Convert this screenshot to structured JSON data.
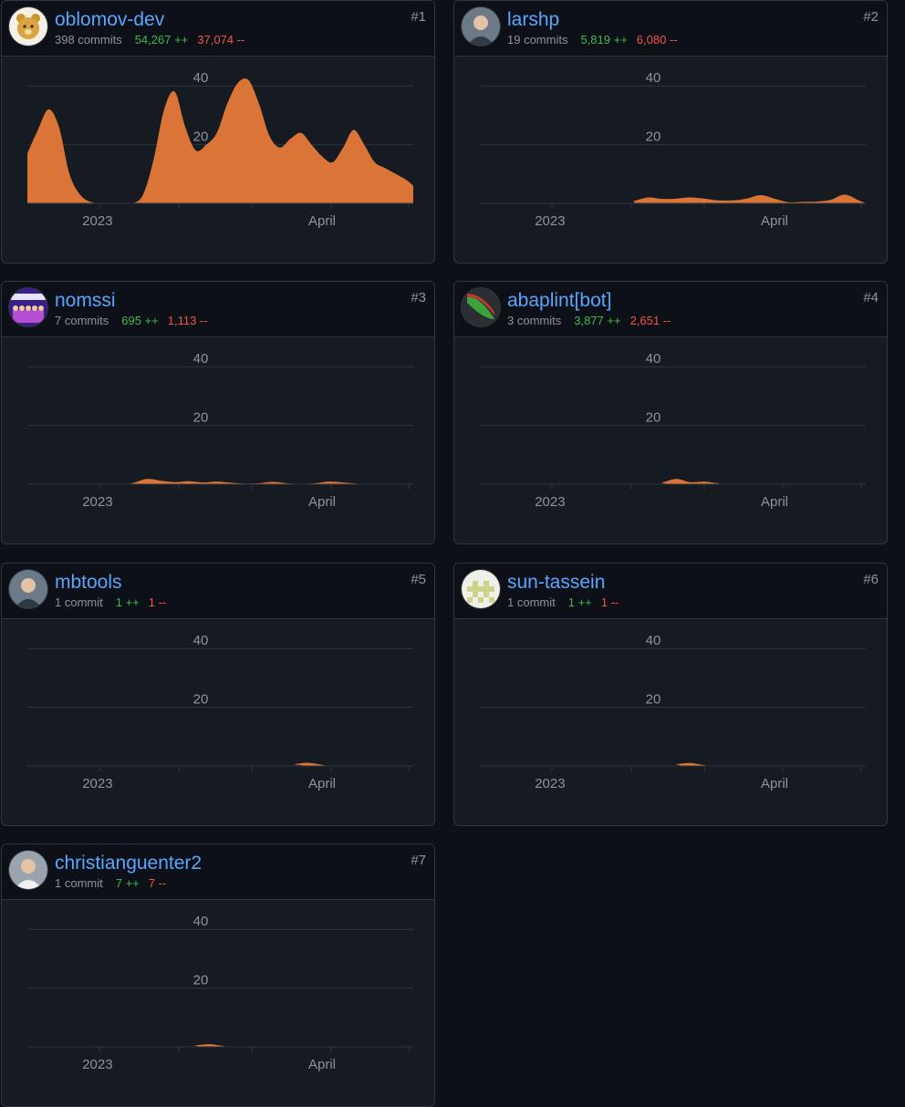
{
  "accent_color": "#db7537",
  "link_color": "#58a6ff",
  "additions_color": "#3fb950",
  "deletions_color": "#f85149",
  "contributors": [
    {
      "rank": "#1",
      "login": "oblomov-dev",
      "avatar_icon": "bear-avatar-icon",
      "commits": "398 commits",
      "additions": "54,267 ++",
      "deletions": "37,074 --",
      "chart_data": {
        "type": "area",
        "xlim": [
          -10,
          100
        ],
        "ylim": [
          0,
          50
        ],
        "yticks": [
          20,
          40
        ],
        "xtick_labels": [
          {
            "x": 10,
            "label": "2023"
          },
          {
            "x": 74,
            "label": "April"
          }
        ],
        "x": [
          -10,
          -7,
          -4,
          -1,
          2,
          5,
          8,
          11,
          14,
          17,
          20,
          23,
          26,
          29,
          32,
          35,
          38,
          41,
          44,
          47,
          50,
          53,
          56,
          59,
          62,
          65,
          68,
          71,
          74,
          77,
          80,
          83,
          86,
          89,
          92,
          95,
          98,
          100
        ],
        "values": [
          17,
          25,
          32,
          26,
          10,
          3,
          0.5,
          0,
          0,
          0,
          0,
          3,
          15,
          32,
          38,
          26,
          18,
          20,
          24,
          34,
          41,
          42,
          34,
          23,
          19,
          22,
          24,
          20,
          16,
          14,
          19,
          25,
          20,
          14,
          12,
          10,
          8,
          6
        ]
      }
    },
    {
      "rank": "#2",
      "login": "larshp",
      "avatar_icon": "person-avatar-icon",
      "commits": "19 commits",
      "additions": "5,819 ++",
      "deletions": "6,080 --",
      "chart_data": {
        "type": "area",
        "xlim": [
          -10,
          100
        ],
        "ylim": [
          0,
          50
        ],
        "yticks": [
          20,
          40
        ],
        "xtick_labels": [
          {
            "x": 10,
            "label": "2023"
          },
          {
            "x": 74,
            "label": "April"
          }
        ],
        "x": [
          -10,
          30,
          34,
          38,
          42,
          46,
          50,
          54,
          58,
          62,
          66,
          70,
          74,
          78,
          82,
          86,
          90,
          94,
          98,
          100
        ],
        "values": [
          0,
          0,
          0.8,
          2,
          1.5,
          1.6,
          2,
          1.6,
          1,
          1,
          1.6,
          2.8,
          1.6,
          0.4,
          0.5,
          0.6,
          1.2,
          3,
          1,
          0
        ]
      }
    },
    {
      "rank": "#3",
      "login": "nomssi",
      "avatar_icon": "banner-avatar-icon",
      "commits": "7 commits",
      "additions": "695 ++",
      "deletions": "1,113 --",
      "chart_data": {
        "type": "area",
        "xlim": [
          -10,
          100
        ],
        "ylim": [
          0,
          50
        ],
        "yticks": [
          20,
          40
        ],
        "xtick_labels": [
          {
            "x": 10,
            "label": "2023"
          },
          {
            "x": 74,
            "label": "April"
          }
        ],
        "x": [
          -10,
          16,
          20,
          24,
          28,
          32,
          36,
          40,
          44,
          48,
          52,
          56,
          60,
          64,
          68,
          72,
          76,
          80,
          84,
          88,
          100
        ],
        "values": [
          0,
          0,
          0.4,
          1.8,
          1.2,
          0.7,
          1,
          0.6,
          0.9,
          0.5,
          0.2,
          0.3,
          0.8,
          0.3,
          0.1,
          0.3,
          0.9,
          0.6,
          0.2,
          0,
          0
        ]
      }
    },
    {
      "rank": "#4",
      "login": "abaplint[bot]",
      "avatar_icon": "logo-avatar-icon",
      "commits": "3 commits",
      "additions": "3,877 ++",
      "deletions": "2,651 --",
      "chart_data": {
        "type": "area",
        "xlim": [
          -10,
          100
        ],
        "ylim": [
          0,
          50
        ],
        "yticks": [
          20,
          40
        ],
        "xtick_labels": [
          {
            "x": 10,
            "label": "2023"
          },
          {
            "x": 74,
            "label": "April"
          }
        ],
        "x": [
          -10,
          38,
          42,
          46,
          50,
          54,
          58,
          62,
          100
        ],
        "values": [
          0,
          0,
          0.6,
          1.8,
          0.7,
          0.9,
          0.3,
          0,
          0
        ]
      }
    },
    {
      "rank": "#5",
      "login": "mbtools",
      "avatar_icon": "person-avatar-icon",
      "commits": "1 commit",
      "additions": "1 ++",
      "deletions": "1 --",
      "chart_data": {
        "type": "area",
        "xlim": [
          -10,
          100
        ],
        "ylim": [
          0,
          50
        ],
        "yticks": [
          20,
          40
        ],
        "xtick_labels": [
          {
            "x": 10,
            "label": "2023"
          },
          {
            "x": 74,
            "label": "April"
          }
        ],
        "x": [
          -10,
          62,
          66,
          70,
          74,
          78,
          100
        ],
        "values": [
          0,
          0,
          0.6,
          1.1,
          0.4,
          0,
          0
        ]
      }
    },
    {
      "rank": "#6",
      "login": "sun-tassein",
      "avatar_icon": "identicon-avatar-icon",
      "commits": "1 commit",
      "additions": "1 ++",
      "deletions": "1 --",
      "chart_data": {
        "type": "area",
        "xlim": [
          -10,
          100
        ],
        "ylim": [
          0,
          50
        ],
        "yticks": [
          20,
          40
        ],
        "xtick_labels": [
          {
            "x": 10,
            "label": "2023"
          },
          {
            "x": 74,
            "label": "April"
          }
        ],
        "x": [
          -10,
          42,
          46,
          50,
          54,
          58,
          100
        ],
        "values": [
          0,
          0,
          0.6,
          1,
          0.3,
          0,
          0
        ]
      }
    },
    {
      "rank": "#7",
      "login": "christianguenter2",
      "avatar_icon": "person-avatar-icon",
      "commits": "1 commit",
      "additions": "7 ++",
      "deletions": "7 --",
      "chart_data": {
        "type": "area",
        "xlim": [
          -10,
          100
        ],
        "ylim": [
          0,
          50
        ],
        "yticks": [
          20,
          40
        ],
        "xtick_labels": [
          {
            "x": 10,
            "label": "2023"
          },
          {
            "x": 74,
            "label": "April"
          }
        ],
        "x": [
          -10,
          34,
          38,
          42,
          46,
          50,
          100
        ],
        "values": [
          0,
          0,
          0.5,
          0.9,
          0.3,
          0,
          0
        ]
      }
    }
  ]
}
